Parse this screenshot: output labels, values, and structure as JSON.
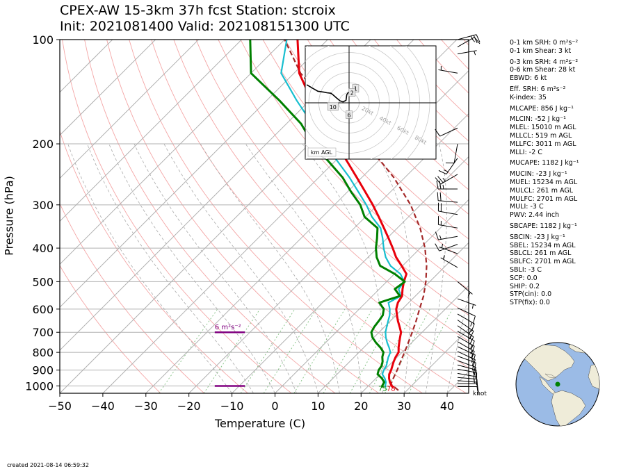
{
  "title_line1": "CPEX-AW 15-3km  37h fcst  Station: stcroix",
  "title_line2": "Init: 2021081400  Valid: 202108151300 UTC",
  "created": "created 2021-08-14 06:59:32",
  "indices": [
    "0-1 km SRH: 0 m²s⁻²",
    "0-1 km Shear: 3 kt",
    "0-3 km SRH: 4 m²s⁻²",
    "0-6 km Shear: 28 kt",
    "EBWD: 6 kt",
    "Eff. SRH: 6 m²s⁻²",
    "K-index: 35",
    "MLCAPE: 856 J kg⁻¹",
    "MLCIN: -52 J kg⁻¹",
    "MLEL: 15010 m AGL",
    "MLLCL: 519 m AGL",
    "MLLFC: 3011 m AGL",
    "MLLI: -2 C",
    "MUCAPE: 1182 J kg⁻¹",
    "MUCIN: -23 J kg⁻¹",
    "MUEL: 15234 m AGL",
    "MULCL: 261 m AGL",
    "MULFC: 2701 m AGL",
    "MULI: -3 C",
    "PWV: 2.44 inch",
    "SBCAPE: 1182 J kg⁻¹",
    "SBCIN: -23 J kg⁻¹",
    "SBEL: 15234 m AGL",
    "SBLCL: 261 m AGL",
    "SBLFC: 2701 m AGL",
    "SBLI: -3 C",
    "SCP: 0.0",
    "SHIP: 0.2",
    "STP(cin): 0.0",
    "STP(fix): 0.0"
  ],
  "chart_data": {
    "type": "line",
    "subtype": "skew-T log-p sounding",
    "xlabel": "Temperature (C)",
    "ylabel": "Pressure (hPa)",
    "xlim": [
      -50,
      45
    ],
    "ylim": [
      1050,
      100
    ],
    "y_scale": "log",
    "x_ticks": [
      "−50",
      "−40",
      "−30",
      "−20",
      "−10",
      "0",
      "10",
      "20",
      "30",
      "40"
    ],
    "x_tick_values": [
      -50,
      -40,
      -30,
      -20,
      -10,
      0,
      10,
      20,
      30,
      40
    ],
    "y_ticks": [
      "100",
      "200",
      "300",
      "400",
      "500",
      "600",
      "700",
      "800",
      "900",
      "1000"
    ],
    "y_tick_values": [
      100,
      200,
      300,
      400,
      500,
      600,
      700,
      800,
      900,
      1000
    ],
    "colors": {
      "temperature": "#e8000b",
      "dewpoint": "#008000",
      "wetbulb": "#17becf",
      "parcel": "#a52a2a",
      "helicity": "#800080",
      "dry_adiabat": "#f4a6a6",
      "moist_adiabat": "#aaaaaa",
      "mixing_ratio": "#7fbf7f"
    },
    "series": [
      {
        "key": "temperature",
        "p": [
          1010,
          1000,
          975,
          950,
          925,
          900,
          875,
          850,
          825,
          800,
          775,
          750,
          725,
          700,
          675,
          650,
          625,
          600,
          575,
          550,
          525,
          500,
          475,
          450,
          425,
          400,
          375,
          350,
          325,
          300,
          275,
          250,
          225,
          200,
          175,
          150,
          125,
          100
        ],
        "t": [
          26.2,
          25.4,
          24.1,
          23.0,
          22.1,
          21.6,
          20.9,
          20.2,
          19.6,
          19.2,
          18.1,
          17.1,
          16.1,
          15.1,
          13.5,
          11.8,
          10.2,
          8.6,
          7.5,
          6.9,
          5.4,
          4.0,
          2.8,
          -0.2,
          -3.5,
          -6.4,
          -9.6,
          -13.1,
          -16.9,
          -21.1,
          -25.9,
          -31.2,
          -37.1,
          -43.8,
          -51.2,
          -59.5,
          -68.8,
          -77.0
        ]
      },
      {
        "key": "dewpoint",
        "p": [
          1010,
          1000,
          975,
          950,
          925,
          900,
          875,
          850,
          825,
          800,
          775,
          750,
          725,
          700,
          675,
          650,
          625,
          600,
          575,
          550,
          525,
          500,
          475,
          450,
          425,
          400,
          375,
          350,
          325,
          300,
          275,
          250,
          225,
          200,
          175,
          150,
          125,
          100
        ],
        "t": [
          23.6,
          23.2,
          22.8,
          21.3,
          19.4,
          18.7,
          18.4,
          17.6,
          16.5,
          15.7,
          13.9,
          11.7,
          9.7,
          8.2,
          7.6,
          7.3,
          6.9,
          5.7,
          3.2,
          6.4,
          3.6,
          4.2,
          0.1,
          -5.2,
          -8.0,
          -10.3,
          -12.3,
          -14.6,
          -20.2,
          -24.0,
          -29.2,
          -34.5,
          -41.4,
          -49.2,
          -56.6,
          -67.0,
          -80.0,
          -88.0
        ]
      },
      {
        "key": "wetbulb",
        "p": [
          1010,
          1000,
          975,
          950,
          925,
          900,
          875,
          850,
          825,
          800,
          775,
          750,
          725,
          700,
          675,
          650,
          625,
          600,
          575,
          550,
          525,
          500,
          475,
          450,
          425,
          400,
          375,
          350,
          325,
          300,
          275,
          250,
          225,
          200,
          175,
          150,
          125,
          100
        ],
        "t": [
          24.4,
          23.9,
          23.2,
          22.0,
          20.5,
          19.9,
          19.5,
          18.7,
          17.9,
          17.3,
          15.9,
          14.3,
          12.8,
          11.5,
          10.5,
          9.5,
          8.5,
          7.1,
          5.3,
          6.6,
          4.5,
          4.1,
          1.4,
          -2.8,
          -5.9,
          -8.5,
          -11.0,
          -13.9,
          -18.5,
          -22.6,
          -27.5,
          -32.9,
          -39.3,
          -46.5,
          -54.0,
          -63.0,
          -73.0,
          -79.5
        ]
      },
      {
        "key": "parcel",
        "p": [
          1030,
          1010,
          1000,
          990,
          970,
          950,
          900,
          850,
          800,
          750,
          700,
          650,
          600,
          550,
          500,
          450,
          400,
          350,
          300,
          250,
          200,
          150,
          125,
          100
        ],
        "t": [
          28.0,
          26.5,
          25.7,
          24.9,
          24.4,
          24.0,
          23.0,
          21.8,
          20.6,
          19.2,
          17.7,
          16.0,
          14.0,
          11.9,
          9.1,
          5.6,
          1.1,
          -4.7,
          -12.3,
          -22.6,
          -36.7,
          -56.6,
          -68.5,
          -80.0
        ]
      }
    ],
    "helicity": {
      "label": "6 m²s⁻²",
      "layer_bottom_hpa": 1000,
      "layer_top_hpa": 700,
      "t_range": [
        -14,
        -7
      ]
    },
    "surface_labels": {
      "dewpoint": "75",
      "temperature": "78"
    },
    "wind_units": "knot",
    "wind_barbs": [
      {
        "p": 1005,
        "dir": 90,
        "spd": 10
      },
      {
        "p": 985,
        "dir": 90,
        "spd": 10
      },
      {
        "p": 965,
        "dir": 95,
        "spd": 10
      },
      {
        "p": 945,
        "dir": 95,
        "spd": 15
      },
      {
        "p": 920,
        "dir": 100,
        "spd": 15
      },
      {
        "p": 895,
        "dir": 100,
        "spd": 15
      },
      {
        "p": 870,
        "dir": 105,
        "spd": 15
      },
      {
        "p": 845,
        "dir": 110,
        "spd": 15
      },
      {
        "p": 820,
        "dir": 110,
        "spd": 15
      },
      {
        "p": 795,
        "dir": 115,
        "spd": 15
      },
      {
        "p": 770,
        "dir": 115,
        "spd": 15
      },
      {
        "p": 745,
        "dir": 120,
        "spd": 15
      },
      {
        "p": 720,
        "dir": 120,
        "spd": 15
      },
      {
        "p": 695,
        "dir": 120,
        "spd": 15
      },
      {
        "p": 670,
        "dir": 125,
        "spd": 15
      },
      {
        "p": 645,
        "dir": 125,
        "spd": 15
      },
      {
        "p": 620,
        "dir": 120,
        "spd": 15
      },
      {
        "p": 595,
        "dir": 115,
        "spd": 10
      },
      {
        "p": 560,
        "dir": 110,
        "spd": 5
      },
      {
        "p": 500,
        "dir": 130,
        "spd": 5
      },
      {
        "p": 455,
        "dir": 300,
        "spd": 5
      },
      {
        "p": 415,
        "dir": 290,
        "spd": 5
      },
      {
        "p": 390,
        "dir": 250,
        "spd": 10
      },
      {
        "p": 370,
        "dir": 260,
        "spd": 15
      },
      {
        "p": 350,
        "dir": 280,
        "spd": 15
      },
      {
        "p": 320,
        "dir": 280,
        "spd": 20
      },
      {
        "p": 295,
        "dir": 275,
        "spd": 20
      },
      {
        "p": 270,
        "dir": 270,
        "spd": 25
      },
      {
        "p": 245,
        "dir": 240,
        "spd": 25
      },
      {
        "p": 220,
        "dir": 215,
        "spd": 15
      },
      {
        "p": 200,
        "dir": 190,
        "spd": 10
      },
      {
        "p": 180,
        "dir": 245,
        "spd": 10
      },
      {
        "p": 125,
        "dir": 280,
        "spd": 5
      },
      {
        "p": 110,
        "dir": 80,
        "spd": 5
      },
      {
        "p": 105,
        "dir": 60,
        "spd": 15
      },
      {
        "p": 100,
        "dir": 75,
        "spd": 25
      }
    ],
    "hodograph": {
      "rings_kt": [
        10,
        20,
        30,
        40,
        50,
        60,
        70,
        80
      ],
      "ring_labels": [
        "20kt",
        "40kt",
        "60kt",
        "80kt"
      ],
      "height_labels": [
        "1",
        "2",
        "10",
        "6"
      ],
      "label": "km AGL",
      "points": [
        {
          "u": -0.6,
          "v": 10.7
        },
        {
          "u": -1.3,
          "v": 9.5
        },
        {
          "u": -2.3,
          "v": 8.1
        },
        {
          "u": -3.0,
          "v": 2.5
        },
        {
          "u": -6.0,
          "v": 1.0
        },
        {
          "u": -9.0,
          "v": 2.0
        },
        {
          "u": -12.0,
          "v": 4.5
        },
        {
          "u": -16.0,
          "v": 8.0
        },
        {
          "u": -18.0,
          "v": 9.5
        },
        {
          "u": -22.0,
          "v": 10.0
        },
        {
          "u": -24.0,
          "v": 10.5
        },
        {
          "u": -31.0,
          "v": 11.5
        },
        {
          "u": -37.0,
          "v": 15.0
        },
        {
          "u": -42.0,
          "v": 18.0
        }
      ],
      "label_points": [
        {
          "text": "1",
          "u": 6.5,
          "v": 14.0
        },
        {
          "text": "2",
          "u": 3.0,
          "v": 10.0
        },
        {
          "text": "10",
          "u": -16.0,
          "v": -4.0
        },
        {
          "text": "6",
          "u": 0.0,
          "v": -12.0
        }
      ]
    },
    "globe": {
      "lat": 17.7,
      "lon": -64.8
    }
  }
}
